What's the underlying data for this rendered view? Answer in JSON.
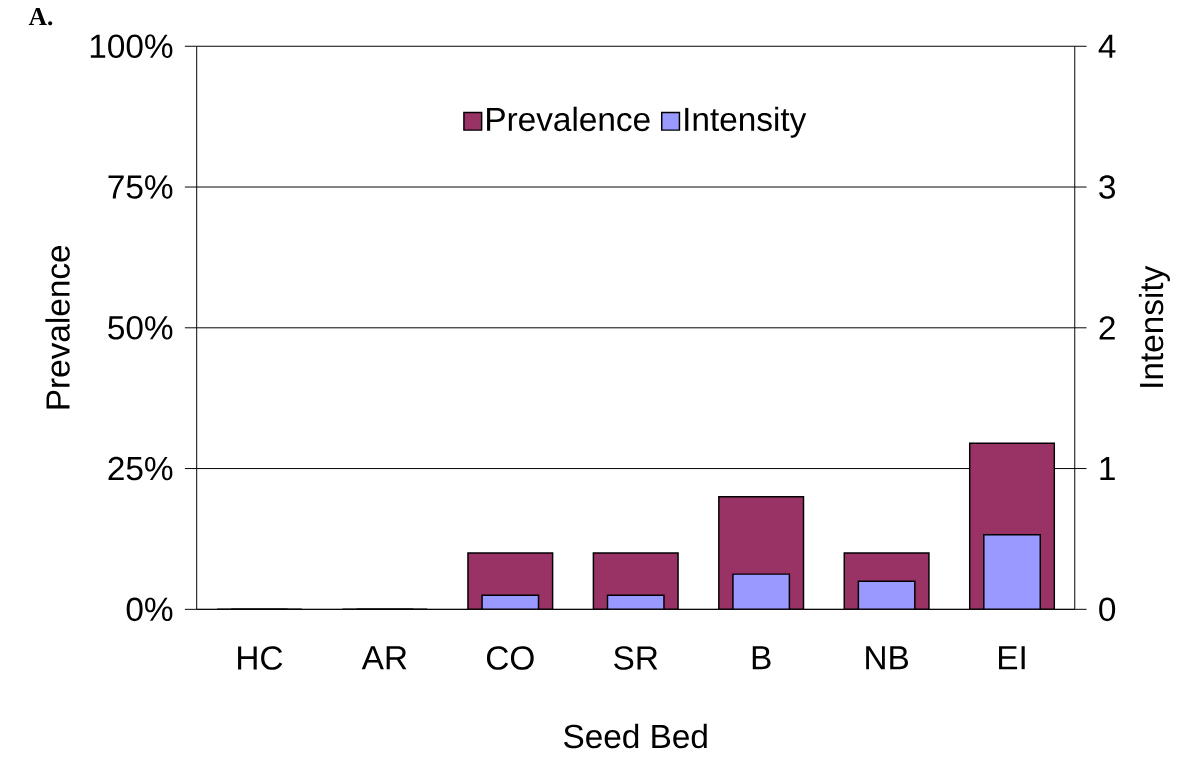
{
  "chart_data": {
    "type": "bar",
    "categories": [
      "HC",
      "AR",
      "CO",
      "SR",
      "B",
      "NB",
      "EI"
    ],
    "series": [
      {
        "name": "Prevalence",
        "color": "#993366",
        "values": [
          0,
          0,
          10,
          10,
          20,
          10,
          29.5
        ]
      },
      {
        "name": "Intensity",
        "color": "#9999ff",
        "axis": "y2",
        "values": [
          0,
          0,
          0.1,
          0.1,
          0.25,
          0.2,
          0.53
        ]
      }
    ],
    "xlabel": "Seed Bed",
    "ylabel": "Prevalence",
    "y2label": "Intensity",
    "ylim": [
      0,
      100
    ],
    "yticks": [
      {
        "value": 0,
        "label": "0%"
      },
      {
        "value": 25,
        "label": "25%"
      },
      {
        "value": 50,
        "label": "50%"
      },
      {
        "value": 75,
        "label": "75%"
      },
      {
        "value": 100,
        "label": "100%"
      }
    ],
    "y2lim": [
      0,
      4
    ],
    "y2ticks": [
      0,
      1,
      2,
      3,
      4
    ],
    "grid": "y",
    "legend": "top",
    "annotations": [
      "A."
    ]
  }
}
